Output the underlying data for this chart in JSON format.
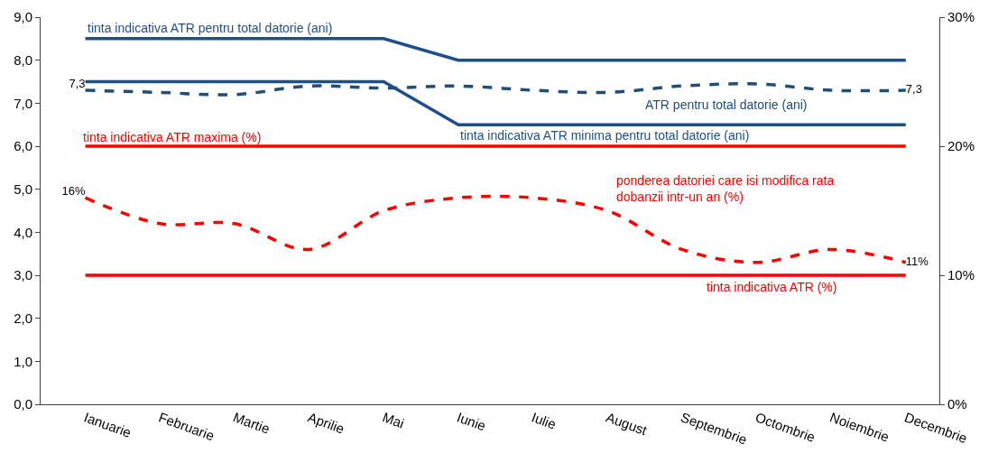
{
  "chart_data": {
    "type": "line",
    "categories": [
      "Ianuarie",
      "Februarie",
      "Martie",
      "Aprilie",
      "Mai",
      "Iunie",
      "Iulie",
      "August",
      "Septembrie",
      "Octombrie",
      "Noiembrie",
      "Decembrie"
    ],
    "series": [
      {
        "name": "tinta indicativa ATR pentru total datorie (ani)",
        "color": "#1f4e8c",
        "line_style": "solid",
        "values": [
          8.5,
          8.5,
          8.5,
          8.5,
          8.5,
          8.0,
          8.0,
          8.0,
          8.0,
          8.0,
          8.0,
          8.0
        ]
      },
      {
        "name": "tinta indicativa ATR minima pentru total datorie (ani)",
        "color": "#1f4e8c",
        "line_style": "solid",
        "values": [
          7.5,
          7.5,
          7.5,
          7.5,
          7.5,
          6.5,
          6.5,
          6.5,
          6.5,
          6.5,
          6.5,
          6.5
        ]
      },
      {
        "name": "ATR pentru total datorie (ani)",
        "color": "#1f4e79",
        "line_style": "dashed",
        "values": [
          7.3,
          7.25,
          7.2,
          7.4,
          7.35,
          7.4,
          7.3,
          7.25,
          7.4,
          7.45,
          7.3,
          7.3
        ],
        "value_labels": [
          "7,3",
          null,
          null,
          null,
          null,
          null,
          null,
          null,
          null,
          null,
          null,
          "7,3"
        ]
      },
      {
        "name": "tinta indicativa ATR maxima (%)",
        "color": "#ff0000",
        "line_style": "solid",
        "values": [
          6.0,
          6.0,
          6.0,
          6.0,
          6.0,
          6.0,
          6.0,
          6.0,
          6.0,
          6.0,
          6.0,
          6.0
        ]
      },
      {
        "name": "ponderea datoriei care isi modifica rata dobanzii intr-un an (%)",
        "color": "#ff0000",
        "line_style": "dashed",
        "axis": "y2",
        "values": [
          16,
          14,
          14,
          12,
          15,
          16,
          16,
          15,
          12,
          11,
          12,
          11
        ],
        "value_labels": [
          "16%",
          null,
          null,
          null,
          null,
          null,
          null,
          null,
          null,
          null,
          null,
          "11%"
        ]
      },
      {
        "name": "tinta indicativa ATR (%)",
        "color": "#ff0000",
        "line_style": "solid",
        "axis": "y2",
        "values": [
          10,
          10,
          10,
          10,
          10,
          10,
          10,
          10,
          10,
          10,
          10,
          10
        ]
      }
    ],
    "ylim": [
      0,
      9
    ],
    "yticks": [
      {
        "value": 0,
        "label": "0,0"
      },
      {
        "value": 1,
        "label": "1,0"
      },
      {
        "value": 2,
        "label": "2,0"
      },
      {
        "value": 3,
        "label": "3,0"
      },
      {
        "value": 4,
        "label": "4,0"
      },
      {
        "value": 5,
        "label": "5,0"
      },
      {
        "value": 6,
        "label": "6,0"
      },
      {
        "value": 7,
        "label": "7,0"
      },
      {
        "value": 8,
        "label": "8,0"
      },
      {
        "value": 9,
        "label": "9,0"
      }
    ],
    "y2lim": [
      0,
      30
    ],
    "y2ticks": [
      {
        "value": 0,
        "label": "0%"
      },
      {
        "value": 10,
        "label": "10%"
      },
      {
        "value": 20,
        "label": "20%"
      },
      {
        "value": 30,
        "label": "30%"
      }
    ],
    "legend": false,
    "marker": "none"
  }
}
